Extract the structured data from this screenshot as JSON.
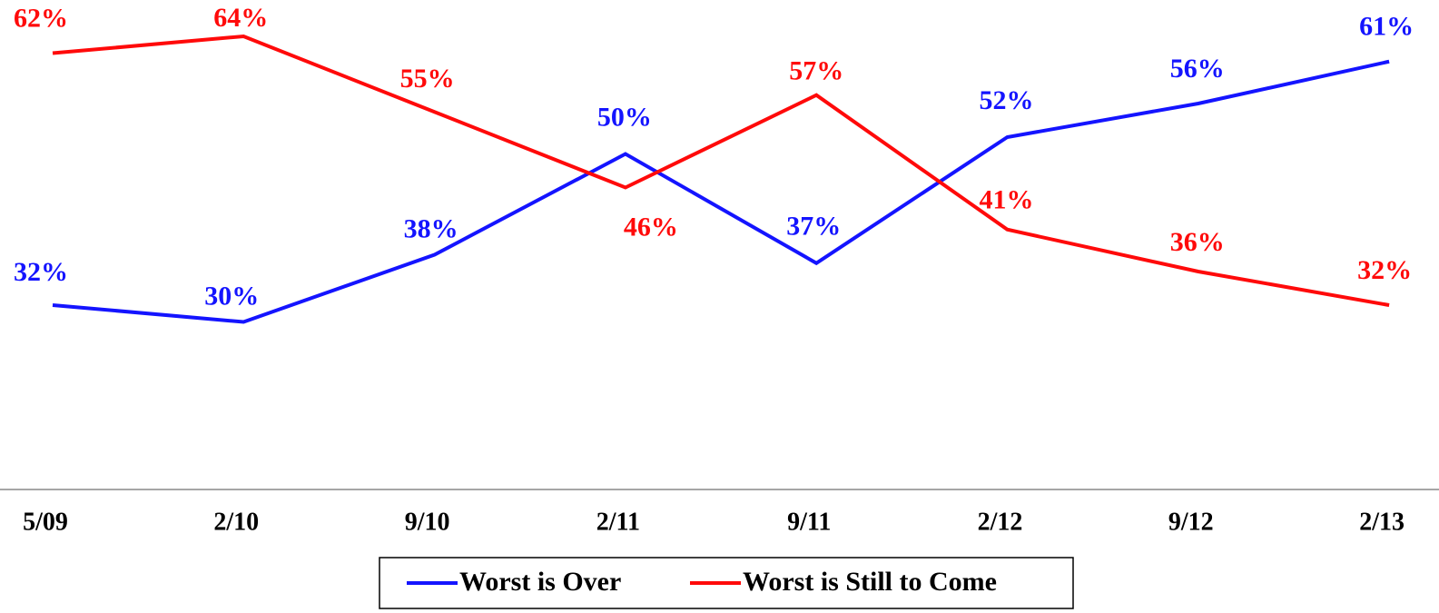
{
  "chart_data": {
    "type": "line",
    "categories": [
      "5/09",
      "2/10",
      "9/10",
      "2/11",
      "9/11",
      "2/12",
      "9/12",
      "2/13"
    ],
    "series": [
      {
        "name": "Worst is Over",
        "color": "#1414ff",
        "values": [
          32,
          30,
          38,
          50,
          37,
          52,
          56,
          61
        ],
        "value_labels": [
          "32%",
          "30%",
          "38%",
          "50%",
          "37%",
          "52%",
          "56%",
          "61%"
        ]
      },
      {
        "name": "Worst is Still to Come",
        "color": "#ff0a0a",
        "values": [
          62,
          64,
          55,
          46,
          57,
          41,
          36,
          32
        ],
        "value_labels": [
          "62%",
          "64%",
          "55%",
          "46%",
          "57%",
          "41%",
          "36%",
          "32%"
        ]
      }
    ],
    "ylim": [
      10,
      68
    ]
  }
}
